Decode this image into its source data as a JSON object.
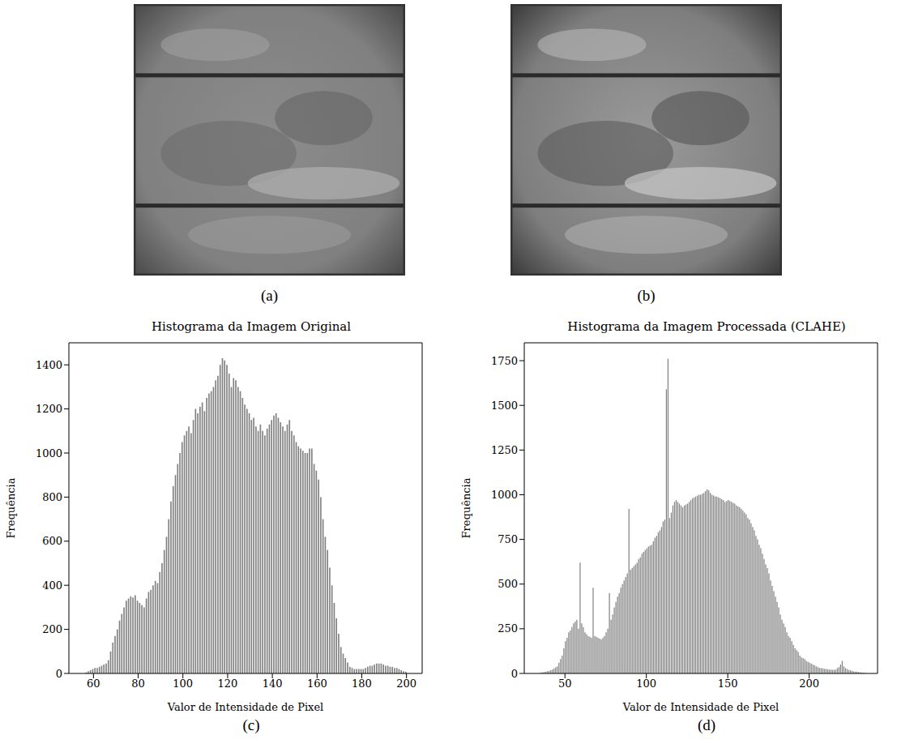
{
  "images": [
    {
      "label": "(a)"
    },
    {
      "label": "(b)"
    }
  ],
  "chart_data": [
    {
      "type": "histogram",
      "label": "(c)",
      "title": "Histograma da Imagem Original",
      "x_label": "Valor de Intensidade de Pixel",
      "y_label": "Frequência",
      "color": "#808080",
      "grid": false,
      "xlim": [
        49,
        207
      ],
      "ylim": [
        0,
        1500
      ],
      "xticks": [
        60,
        80,
        100,
        120,
        140,
        160,
        180,
        200
      ],
      "yticks": [
        0,
        200,
        400,
        600,
        800,
        1000,
        1200,
        1400
      ],
      "bins": [
        56,
        57,
        58,
        59,
        60,
        61,
        62,
        63,
        64,
        65,
        66,
        67,
        68,
        69,
        70,
        71,
        72,
        73,
        74,
        75,
        76,
        77,
        78,
        79,
        80,
        81,
        82,
        83,
        84,
        85,
        86,
        87,
        88,
        89,
        90,
        91,
        92,
        93,
        94,
        95,
        96,
        97,
        98,
        99,
        100,
        101,
        102,
        103,
        104,
        105,
        106,
        107,
        108,
        109,
        110,
        111,
        112,
        113,
        114,
        115,
        116,
        117,
        118,
        119,
        120,
        121,
        122,
        123,
        124,
        125,
        126,
        127,
        128,
        129,
        130,
        131,
        132,
        133,
        134,
        135,
        136,
        137,
        138,
        139,
        140,
        141,
        142,
        143,
        144,
        145,
        146,
        147,
        148,
        149,
        150,
        151,
        152,
        153,
        154,
        155,
        156,
        157,
        158,
        159,
        160,
        161,
        162,
        163,
        164,
        165,
        166,
        167,
        168,
        169,
        170,
        171,
        172,
        173,
        174,
        175,
        176,
        177,
        178,
        179,
        180,
        181,
        182,
        183,
        184,
        185,
        186,
        187,
        188,
        189,
        190,
        191,
        192,
        193,
        194,
        195,
        196,
        197,
        198,
        199,
        200
      ],
      "values": [
        5,
        10,
        15,
        20,
        25,
        25,
        30,
        35,
        40,
        45,
        60,
        100,
        140,
        170,
        200,
        240,
        270,
        300,
        330,
        340,
        350,
        345,
        355,
        330,
        320,
        310,
        300,
        340,
        370,
        380,
        400,
        420,
        410,
        460,
        500,
        560,
        620,
        700,
        780,
        850,
        900,
        950,
        1000,
        1050,
        1080,
        1100,
        1120,
        1090,
        1150,
        1200,
        1180,
        1210,
        1230,
        1190,
        1250,
        1270,
        1280,
        1300,
        1330,
        1350,
        1400,
        1430,
        1420,
        1400,
        1360,
        1300,
        1340,
        1330,
        1300,
        1280,
        1250,
        1220,
        1200,
        1180,
        1150,
        1160,
        1120,
        1100,
        1130,
        1100,
        1080,
        1110,
        1130,
        1150,
        1170,
        1180,
        1160,
        1140,
        1120,
        1100,
        1130,
        1150,
        1100,
        1080,
        1050,
        1030,
        1020,
        1010,
        1000,
        1000,
        1020,
        1020,
        950,
        920,
        880,
        800,
        700,
        620,
        560,
        480,
        400,
        320,
        250,
        180,
        120,
        90,
        70,
        50,
        30,
        25,
        20,
        20,
        20,
        20,
        20,
        25,
        30,
        35,
        35,
        40,
        45,
        45,
        45,
        40,
        35,
        35,
        30,
        30,
        25,
        25,
        20,
        15,
        10,
        8
      ]
    },
    {
      "type": "histogram",
      "label": "(d)",
      "title": "Histograma da Imagem Processada (CLAHE)",
      "x_label": "Valor de Intensidade de Pixel",
      "y_label": "Frequência",
      "color": "#808080",
      "grid": false,
      "xlim": [
        25,
        242
      ],
      "ylim": [
        0,
        1850
      ],
      "xticks": [
        50,
        100,
        150,
        200
      ],
      "yticks": [
        0,
        250,
        500,
        750,
        1000,
        1250,
        1500,
        1750
      ],
      "bins": [
        35,
        36,
        37,
        38,
        39,
        40,
        41,
        42,
        43,
        44,
        45,
        46,
        47,
        48,
        49,
        50,
        51,
        52,
        53,
        54,
        55,
        56,
        57,
        58,
        59,
        60,
        61,
        62,
        63,
        64,
        65,
        66,
        67,
        68,
        69,
        70,
        71,
        72,
        73,
        74,
        75,
        76,
        77,
        78,
        79,
        80,
        81,
        82,
        83,
        84,
        85,
        86,
        87,
        88,
        89,
        90,
        91,
        92,
        93,
        94,
        95,
        96,
        97,
        98,
        99,
        100,
        101,
        102,
        103,
        104,
        105,
        106,
        107,
        108,
        109,
        110,
        111,
        112,
        113,
        114,
        115,
        116,
        117,
        118,
        119,
        120,
        121,
        122,
        123,
        124,
        125,
        126,
        127,
        128,
        129,
        130,
        131,
        132,
        133,
        134,
        135,
        136,
        137,
        138,
        139,
        140,
        141,
        142,
        143,
        144,
        145,
        146,
        147,
        148,
        149,
        150,
        151,
        152,
        153,
        154,
        155,
        156,
        157,
        158,
        159,
        160,
        161,
        162,
        163,
        164,
        165,
        166,
        167,
        168,
        169,
        170,
        171,
        172,
        173,
        174,
        175,
        176,
        177,
        178,
        179,
        180,
        181,
        182,
        183,
        184,
        185,
        186,
        187,
        188,
        189,
        190,
        191,
        192,
        193,
        194,
        195,
        196,
        197,
        198,
        199,
        200,
        201,
        202,
        203,
        204,
        205,
        206,
        207,
        208,
        209,
        210,
        211,
        212,
        213,
        214,
        215,
        216,
        217,
        218,
        219,
        220,
        221,
        222,
        223,
        224,
        225,
        226,
        227,
        228,
        229,
        230,
        231,
        232,
        233,
        234,
        235
      ],
      "values": [
        5,
        6,
        8,
        10,
        12,
        15,
        18,
        22,
        28,
        34,
        40,
        60,
        80,
        100,
        140,
        180,
        200,
        230,
        240,
        260,
        280,
        290,
        300,
        250,
        620,
        280,
        260,
        230,
        220,
        210,
        205,
        200,
        480,
        210,
        205,
        200,
        195,
        190,
        200,
        210,
        230,
        250,
        450,
        300,
        330,
        370,
        400,
        430,
        450,
        480,
        500,
        520,
        540,
        560,
        920,
        580,
        590,
        600,
        610,
        620,
        640,
        650,
        670,
        680,
        690,
        700,
        710,
        715,
        720,
        740,
        760,
        770,
        790,
        800,
        820,
        850,
        860,
        1590,
        1760,
        870,
        900,
        940,
        960,
        970,
        960,
        950,
        940,
        930,
        940,
        945,
        950,
        960,
        970,
        980,
        985,
        990,
        995,
        1000,
        1000,
        1005,
        1010,
        1020,
        1030,
        1025,
        1010,
        1000,
        995,
        990,
        990,
        985,
        980,
        975,
        970,
        960,
        965,
        970,
        965,
        960,
        955,
        950,
        940,
        935,
        930,
        920,
        910,
        900,
        890,
        870,
        860,
        840,
        820,
        800,
        770,
        750,
        720,
        700,
        670,
        640,
        610,
        590,
        560,
        520,
        490,
        460,
        430,
        400,
        370,
        330,
        300,
        280,
        260,
        230,
        210,
        200,
        180,
        160,
        140,
        130,
        120,
        100,
        90,
        85,
        80,
        70,
        65,
        60,
        55,
        50,
        45,
        40,
        35,
        32,
        30,
        28,
        26,
        25,
        24,
        22,
        21,
        20,
        20,
        22,
        30,
        35,
        50,
        70,
        40,
        30,
        25,
        20,
        18,
        15,
        12,
        10,
        10,
        8,
        6,
        5,
        4,
        3
      ]
    }
  ]
}
